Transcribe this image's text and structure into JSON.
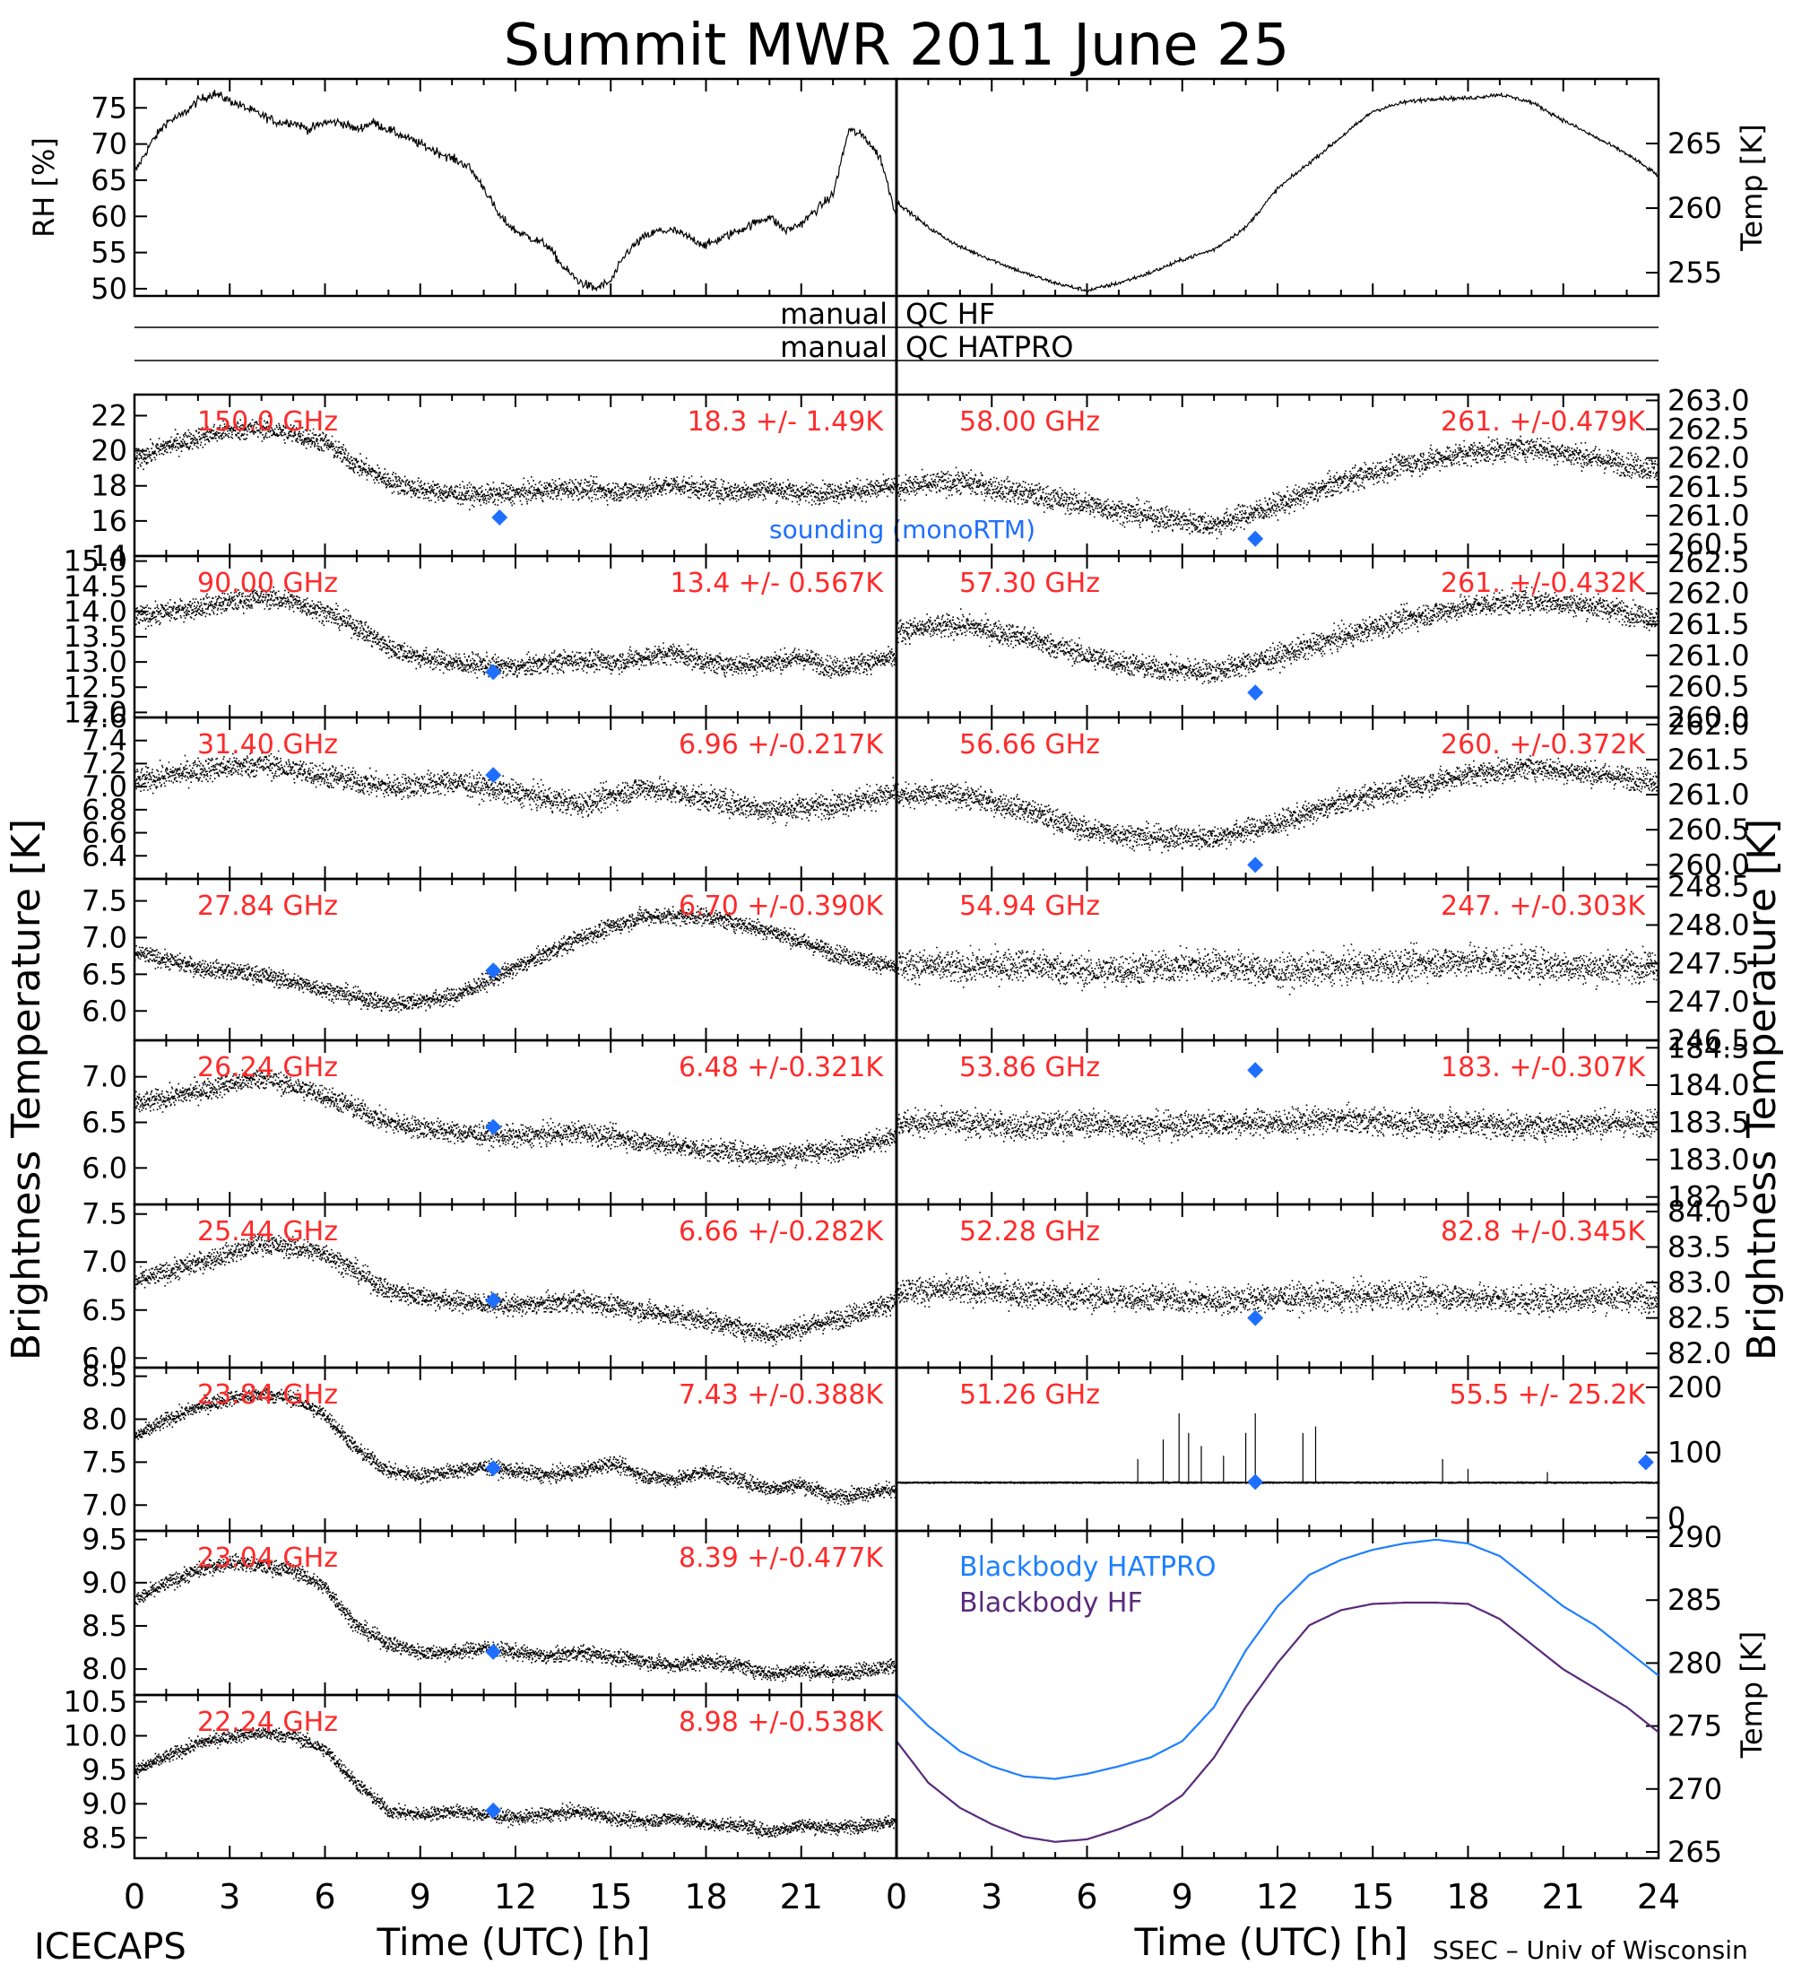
{
  "title": "Summit MWR 2011 June 25",
  "footer_left": "ICECAPS",
  "footer_right": "SSEC – Univ of Wisconsin",
  "left_ylabel": "Brightness Temperature [K]",
  "right_ylabel": "Brightness Temperature [K]",
  "xlabel": "Time (UTC) [h]",
  "qc_rows": [
    {
      "left": "manual",
      "right": "QC HF"
    },
    {
      "left": "manual",
      "right": "QC HATPRO"
    }
  ],
  "legend_sounding": "sounding (monoRTM)",
  "colors": {
    "data": "#000000",
    "annotation": "#ff2a2a",
    "sounding": "#1e6fff",
    "bb_hatpro": "#1e7fff",
    "bb_hf": "#5a2a7a"
  },
  "chart_data": [
    {
      "id": "rh",
      "type": "line",
      "side": "left",
      "ylabel": "RH [%]",
      "ylim": [
        49,
        79
      ],
      "yticks": [
        50,
        55,
        60,
        65,
        70,
        75
      ],
      "x": [
        0,
        0.5,
        1,
        1.5,
        2,
        2.5,
        3,
        3.5,
        4,
        4.5,
        5,
        5.5,
        6,
        6.5,
        7,
        7.5,
        8,
        8.5,
        9,
        9.5,
        10,
        10.5,
        11,
        11.5,
        12,
        12.5,
        13,
        13.5,
        14,
        14.5,
        15,
        15.5,
        16,
        16.5,
        17,
        17.5,
        18,
        18.5,
        19,
        19.5,
        20,
        20.5,
        21,
        21.5,
        22,
        22.5,
        23,
        23.5,
        24
      ],
      "y": [
        66,
        70,
        73,
        74,
        76,
        77,
        76,
        75,
        74,
        73,
        73,
        72,
        73,
        73,
        72,
        73,
        72,
        71,
        70,
        69,
        68,
        67,
        64,
        60,
        58,
        57,
        56,
        53,
        51,
        50,
        51,
        55,
        57,
        58,
        58,
        57,
        56,
        57,
        58,
        59,
        60,
        58,
        59,
        61,
        63,
        72,
        71,
        68,
        60
      ]
    },
    {
      "id": "temp",
      "type": "line",
      "side": "right",
      "ylabel": "Temp [K]",
      "ylim": [
        253.2,
        270
      ],
      "yticks": [
        255,
        260,
        265
      ],
      "x": [
        0,
        1,
        2,
        3,
        4,
        5,
        6,
        7,
        8,
        9,
        10,
        11,
        12,
        13,
        14,
        15,
        16,
        17,
        18,
        19,
        20,
        21,
        22,
        23,
        24
      ],
      "y": [
        260.5,
        258.5,
        257,
        256,
        255,
        254.2,
        253.6,
        254.2,
        255,
        256,
        256.8,
        258.5,
        261.5,
        263.5,
        265.5,
        267.5,
        268.2,
        268.5,
        268.5,
        268.8,
        268.2,
        266.8,
        265.5,
        264.2,
        262.5
      ]
    },
    {
      "id": "p150",
      "type": "scatter",
      "side": "left",
      "label": "150.0 GHz",
      "stat": "18.3 +/-  1.49K",
      "ylim": [
        14,
        23.2
      ],
      "yticks": [
        14,
        16,
        18,
        20,
        22
      ],
      "noise": 1.0,
      "sounding": [
        [
          11.5,
          16.2
        ]
      ],
      "x": [
        0,
        1,
        2,
        3,
        4,
        5,
        6,
        7,
        8,
        9,
        10,
        11,
        12,
        13,
        14,
        15,
        16,
        17,
        18,
        19,
        20,
        21,
        22,
        23,
        24
      ],
      "y": [
        19.5,
        20.3,
        20.8,
        21.2,
        21.3,
        21.0,
        20.5,
        19.2,
        18.3,
        17.8,
        17.6,
        17.5,
        17.6,
        17.8,
        17.9,
        17.7,
        17.8,
        18.1,
        17.8,
        17.7,
        17.9,
        17.6,
        17.7,
        17.8,
        18.0
      ]
    },
    {
      "id": "p90",
      "type": "scatter",
      "side": "left",
      "label": "90.00 GHz",
      "stat": "13.4 +/- 0.567K",
      "ylim": [
        11.9,
        15.1
      ],
      "yticks": [
        12,
        12.5,
        13,
        13.5,
        14,
        14.5,
        15
      ],
      "noise": 0.35,
      "sounding": [
        [
          11.3,
          12.8
        ]
      ],
      "x": [
        0,
        1,
        2,
        3,
        4,
        5,
        6,
        7,
        8,
        9,
        10,
        11,
        12,
        13,
        14,
        15,
        16,
        17,
        18,
        19,
        20,
        21,
        22,
        23,
        24
      ],
      "y": [
        13.9,
        14.0,
        14.1,
        14.2,
        14.3,
        14.2,
        14.0,
        13.7,
        13.3,
        13.1,
        13.0,
        12.95,
        12.9,
        13.0,
        13.05,
        13.0,
        13.1,
        13.2,
        13.0,
        12.95,
        13.0,
        13.1,
        12.9,
        13.0,
        13.1
      ]
    },
    {
      "id": "p31",
      "type": "scatter",
      "side": "left",
      "label": "31.40 GHz",
      "stat": "6.96 +/-0.217K",
      "ylim": [
        6.2,
        7.6
      ],
      "yticks": [
        6.4,
        6.6,
        6.8,
        7.0,
        7.2,
        7.4,
        7.6
      ],
      "noise": 0.18,
      "sounding": [
        [
          11.3,
          7.1
        ]
      ],
      "x": [
        0,
        2,
        4,
        6,
        8,
        10,
        12,
        14,
        16,
        18,
        20,
        22,
        24
      ],
      "y": [
        7.05,
        7.15,
        7.2,
        7.1,
        7.0,
        7.05,
        6.95,
        6.85,
        7.0,
        6.9,
        6.8,
        6.85,
        6.95
      ]
    },
    {
      "id": "p27",
      "type": "scatter",
      "side": "left",
      "label": "27.84 GHz",
      "stat": "6.70 +/-0.390K",
      "ylim": [
        5.6,
        7.8
      ],
      "yticks": [
        6.0,
        6.5,
        7.0,
        7.5
      ],
      "noise": 0.2,
      "sounding": [
        [
          11.3,
          6.55
        ]
      ],
      "x": [
        0,
        2,
        4,
        6,
        8,
        10,
        12,
        14,
        16,
        18,
        20,
        22,
        24
      ],
      "y": [
        6.8,
        6.6,
        6.5,
        6.3,
        6.1,
        6.2,
        6.6,
        7.0,
        7.3,
        7.3,
        7.1,
        6.8,
        6.6
      ]
    },
    {
      "id": "p26",
      "type": "scatter",
      "side": "left",
      "label": "26.24 GHz",
      "stat": "6.48 +/-0.321K",
      "ylim": [
        5.6,
        7.4
      ],
      "yticks": [
        6.0,
        6.5,
        7.0
      ],
      "noise": 0.2,
      "sounding": [
        [
          11.3,
          6.45
        ]
      ],
      "x": [
        0,
        2,
        4,
        6,
        8,
        10,
        12,
        14,
        16,
        18,
        20,
        22,
        24
      ],
      "y": [
        6.7,
        6.85,
        7.0,
        6.8,
        6.5,
        6.4,
        6.35,
        6.4,
        6.3,
        6.2,
        6.15,
        6.2,
        6.35
      ]
    },
    {
      "id": "p25",
      "type": "scatter",
      "side": "left",
      "label": "25.44 GHz",
      "stat": "6.66 +/-0.282K",
      "ylim": [
        5.9,
        7.6
      ],
      "yticks": [
        6.0,
        6.5,
        7.0,
        7.5
      ],
      "noise": 0.18,
      "sounding": [
        [
          11.3,
          6.6
        ]
      ],
      "x": [
        0,
        2,
        4,
        6,
        8,
        10,
        12,
        14,
        16,
        18,
        20,
        22,
        24
      ],
      "y": [
        6.8,
        7.0,
        7.2,
        7.1,
        6.7,
        6.6,
        6.55,
        6.6,
        6.5,
        6.4,
        6.25,
        6.4,
        6.6
      ]
    },
    {
      "id": "p23d",
      "type": "scatter",
      "side": "left",
      "label": "23.84 GHz",
      "stat": "7.43 +/-0.388K",
      "ylim": [
        6.7,
        8.6
      ],
      "yticks": [
        7.0,
        7.5,
        8.0,
        8.5
      ],
      "noise": 0.15,
      "sounding": [
        [
          11.3,
          7.43
        ]
      ],
      "x": [
        0,
        1,
        2,
        3,
        4,
        5,
        6,
        7,
        8,
        9,
        10,
        11,
        12,
        13,
        14,
        15,
        16,
        17,
        18,
        19,
        20,
        21,
        22,
        23,
        24
      ],
      "y": [
        7.8,
        8.0,
        8.15,
        8.25,
        8.3,
        8.25,
        8.05,
        7.65,
        7.4,
        7.35,
        7.4,
        7.45,
        7.4,
        7.35,
        7.4,
        7.5,
        7.35,
        7.3,
        7.4,
        7.3,
        7.2,
        7.25,
        7.1,
        7.15,
        7.2
      ]
    },
    {
      "id": "p23c",
      "type": "scatter",
      "side": "left",
      "label": "23.04 GHz",
      "stat": "8.39 +/-0.477K",
      "ylim": [
        7.7,
        9.6
      ],
      "yticks": [
        8.0,
        8.5,
        9.0,
        9.5
      ],
      "noise": 0.15,
      "sounding": [
        [
          11.3,
          8.2
        ]
      ],
      "x": [
        0,
        1,
        2,
        3,
        4,
        5,
        6,
        7,
        8,
        9,
        10,
        11,
        12,
        13,
        14,
        15,
        16,
        17,
        18,
        19,
        20,
        21,
        22,
        23,
        24
      ],
      "y": [
        8.8,
        9.0,
        9.15,
        9.25,
        9.2,
        9.15,
        8.95,
        8.5,
        8.3,
        8.2,
        8.2,
        8.25,
        8.2,
        8.15,
        8.2,
        8.15,
        8.1,
        8.05,
        8.1,
        8.05,
        7.95,
        8.0,
        7.95,
        8.0,
        8.05
      ]
    },
    {
      "id": "p22",
      "type": "scatter",
      "side": "left",
      "label": "22.24 GHz",
      "stat": "8.98 +/-0.538K",
      "ylim": [
        8.2,
        10.6
      ],
      "yticks": [
        8.5,
        9.0,
        9.5,
        10.0,
        10.5
      ],
      "noise": 0.17,
      "sounding": [
        [
          11.3,
          8.9
        ]
      ],
      "x": [
        0,
        1,
        2,
        3,
        4,
        5,
        6,
        7,
        8,
        9,
        10,
        11,
        12,
        13,
        14,
        15,
        16,
        17,
        18,
        19,
        20,
        21,
        22,
        23,
        24
      ],
      "y": [
        9.5,
        9.7,
        9.9,
        10.0,
        10.05,
        10.0,
        9.8,
        9.3,
        8.9,
        8.85,
        8.9,
        8.85,
        8.8,
        8.85,
        8.9,
        8.8,
        8.75,
        8.8,
        8.7,
        8.7,
        8.6,
        8.7,
        8.65,
        8.7,
        8.75
      ]
    },
    {
      "id": "p58",
      "type": "scatter",
      "side": "right",
      "label": "58.00 GHz",
      "stat": "261. +/-0.479K",
      "ylim": [
        260.3,
        263.1
      ],
      "yticks": [
        260.5,
        261.0,
        261.5,
        262.0,
        262.5,
        263.0
      ],
      "noise": 0.35,
      "sounding": [
        [
          11.3,
          260.6
        ]
      ],
      "x": [
        0,
        2,
        4,
        6,
        8,
        10,
        12,
        14,
        16,
        18,
        20,
        22,
        24
      ],
      "y": [
        261.5,
        261.6,
        261.4,
        261.2,
        261.0,
        260.85,
        261.2,
        261.6,
        261.9,
        262.1,
        262.2,
        262.0,
        261.8
      ]
    },
    {
      "id": "p57",
      "type": "scatter",
      "side": "right",
      "label": "57.30 GHz",
      "stat": "261. +/-0.432K",
      "ylim": [
        260.0,
        262.6
      ],
      "yticks": [
        260.0,
        260.5,
        261.0,
        261.5,
        262.0,
        262.5
      ],
      "noise": 0.32,
      "sounding": [
        [
          11.3,
          260.4
        ]
      ],
      "x": [
        0,
        2,
        4,
        6,
        8,
        10,
        12,
        14,
        16,
        18,
        20,
        22,
        24
      ],
      "y": [
        261.4,
        261.5,
        261.3,
        261.0,
        260.8,
        260.75,
        261.0,
        261.3,
        261.6,
        261.8,
        261.9,
        261.8,
        261.6
      ]
    },
    {
      "id": "p56",
      "type": "scatter",
      "side": "right",
      "label": "56.66 GHz",
      "stat": "260. +/-0.372K",
      "ylim": [
        259.8,
        262.1
      ],
      "yticks": [
        260.0,
        260.5,
        261.0,
        261.5,
        262.0
      ],
      "noise": 0.28,
      "sounding": [
        [
          11.3,
          260.0
        ]
      ],
      "x": [
        0,
        2,
        4,
        6,
        8,
        10,
        12,
        14,
        16,
        18,
        20,
        22,
        24
      ],
      "y": [
        261.0,
        261.0,
        260.8,
        260.5,
        260.4,
        260.4,
        260.6,
        260.9,
        261.1,
        261.3,
        261.4,
        261.3,
        261.2
      ]
    },
    {
      "id": "p54",
      "type": "scatter",
      "side": "right",
      "label": "54.94 GHz",
      "stat": "247. +/-0.303K",
      "ylim": [
        246.5,
        248.6
      ],
      "yticks": [
        246.5,
        247.0,
        247.5,
        248.0,
        248.5
      ],
      "noise": 0.35,
      "x": [
        0,
        2,
        4,
        6,
        8,
        10,
        12,
        14,
        16,
        18,
        20,
        22,
        24
      ],
      "y": [
        247.5,
        247.45,
        247.5,
        247.4,
        247.45,
        247.5,
        247.4,
        247.45,
        247.5,
        247.55,
        247.5,
        247.45,
        247.5
      ]
    },
    {
      "id": "p53",
      "type": "scatter",
      "side": "right",
      "label": "53.86 GHz",
      "stat": "183. +/-0.307K",
      "ylim": [
        182.4,
        184.6
      ],
      "yticks": [
        182.5,
        183.0,
        183.5,
        184.0,
        184.5
      ],
      "noise": 0.3,
      "sounding": [
        [
          11.3,
          184.2
        ]
      ],
      "x": [
        0,
        2,
        4,
        6,
        8,
        10,
        12,
        14,
        16,
        18,
        20,
        22,
        24
      ],
      "y": [
        183.5,
        183.5,
        183.45,
        183.5,
        183.45,
        183.5,
        183.5,
        183.55,
        183.5,
        183.5,
        183.45,
        183.5,
        183.5
      ]
    },
    {
      "id": "p52",
      "type": "scatter",
      "side": "right",
      "label": "52.28 GHz",
      "stat": "82.8 +/-0.345K",
      "ylim": [
        81.8,
        84.1
      ],
      "yticks": [
        82.0,
        82.5,
        83.0,
        83.5,
        84.0
      ],
      "noise": 0.33,
      "sounding": [
        [
          11.3,
          82.5
        ]
      ],
      "x": [
        0,
        2,
        4,
        6,
        8,
        10,
        12,
        14,
        16,
        18,
        20,
        22,
        24
      ],
      "y": [
        82.9,
        82.9,
        82.85,
        82.8,
        82.8,
        82.75,
        82.8,
        82.8,
        82.85,
        82.8,
        82.75,
        82.8,
        82.8
      ]
    },
    {
      "id": "p51",
      "type": "scatter",
      "side": "right",
      "label": "51.26 GHz",
      "stat": "55.5 +/- 25.2K",
      "ylim": [
        -20,
        230
      ],
      "yticks": [
        0,
        100,
        200
      ],
      "noise": 1.5,
      "sounding": [
        [
          11.3,
          55
        ],
        [
          23.6,
          85
        ]
      ],
      "x": [
        0,
        24
      ],
      "y": [
        55,
        55
      ],
      "spikes": [
        [
          7.6,
          90
        ],
        [
          8.4,
          120
        ],
        [
          8.9,
          160
        ],
        [
          9.2,
          130
        ],
        [
          9.6,
          110
        ],
        [
          10.3,
          95
        ],
        [
          11.0,
          130
        ],
        [
          11.3,
          160
        ],
        [
          12.8,
          130
        ],
        [
          13.2,
          140
        ],
        [
          17.2,
          90
        ],
        [
          18.0,
          75
        ],
        [
          20.5,
          70
        ]
      ]
    },
    {
      "id": "blackbody",
      "type": "line",
      "side": "right",
      "ylabel": "Temp [K]",
      "ylim": [
        264.5,
        290.5
      ],
      "yticks": [
        265,
        270,
        275,
        280,
        285,
        290
      ],
      "legend": [
        "Blackbody HATPRO",
        "Blackbody HF"
      ],
      "x": [
        0,
        1,
        2,
        3,
        4,
        5,
        6,
        7,
        8,
        9,
        10,
        11,
        12,
        13,
        14,
        15,
        16,
        17,
        18,
        19,
        20,
        21,
        22,
        23,
        24
      ],
      "series": [
        {
          "name": "Blackbody HATPRO",
          "values": [
            277.5,
            275.0,
            273.0,
            271.8,
            271.0,
            270.8,
            271.2,
            271.8,
            272.5,
            273.8,
            276.5,
            281.0,
            284.5,
            287.0,
            288.2,
            289.0,
            289.5,
            289.8,
            289.5,
            288.5,
            286.5,
            284.5,
            283.0,
            281.0,
            279.0
          ]
        },
        {
          "name": "Blackbody HF",
          "values": [
            273.8,
            270.5,
            268.5,
            267.2,
            266.2,
            265.8,
            266.0,
            266.8,
            267.8,
            269.5,
            272.5,
            276.5,
            280.0,
            283.0,
            284.2,
            284.7,
            284.8,
            284.8,
            284.7,
            283.5,
            281.5,
            279.5,
            278.0,
            276.5,
            274.5
          ]
        }
      ]
    }
  ]
}
